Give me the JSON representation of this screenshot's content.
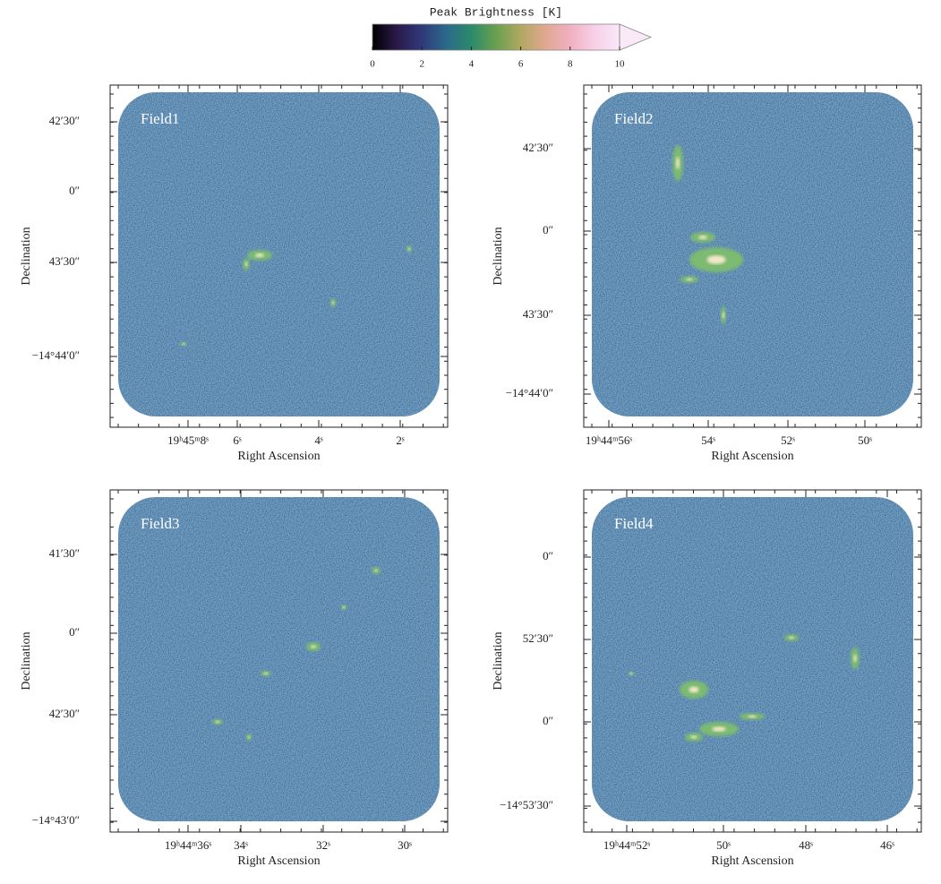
{
  "colorbar": {
    "title": "Peak Brightness [K]",
    "lim": [
      0,
      10
    ],
    "ticks": [
      0,
      2,
      4,
      6,
      8,
      10
    ]
  },
  "panels": [
    {
      "label": "Field1",
      "xlabel": "Right Ascension",
      "ylabel": "Declination",
      "xticks": [
        "19ʰ45ᵐ8ˢ",
        "6ˢ",
        "4ˢ",
        "2ˢ"
      ],
      "yticks": [
        "42′30″",
        "0″",
        "43′30″",
        "−14°44′0″"
      ]
    },
    {
      "label": "Field2",
      "xlabel": "Right Ascension",
      "ylabel": "Declination",
      "xticks": [
        "19ʰ44ᵐ56ˢ",
        "54ˢ",
        "52ˢ",
        "50ˢ"
      ],
      "yticks": [
        "42′30″",
        "0″",
        "43′30″",
        "−14°44′0″"
      ]
    },
    {
      "label": "Field3",
      "xlabel": "Right Ascension",
      "ylabel": "Declination",
      "xticks": [
        "19ʰ44ᵐ36ˢ",
        "34ˢ",
        "32ˢ",
        "30ˢ"
      ],
      "yticks": [
        "41′30″",
        "0″",
        "42′30″",
        "−14°43′0″"
      ]
    },
    {
      "label": "Field4",
      "xlabel": "Right Ascension",
      "ylabel": "Declination",
      "xticks": [
        "19ʰ44ᵐ52ˢ",
        "50ˢ",
        "48ˢ",
        "46ˢ"
      ],
      "yticks": [
        "0″",
        "52′30″",
        "0″",
        "−14°53′30″"
      ]
    }
  ]
}
